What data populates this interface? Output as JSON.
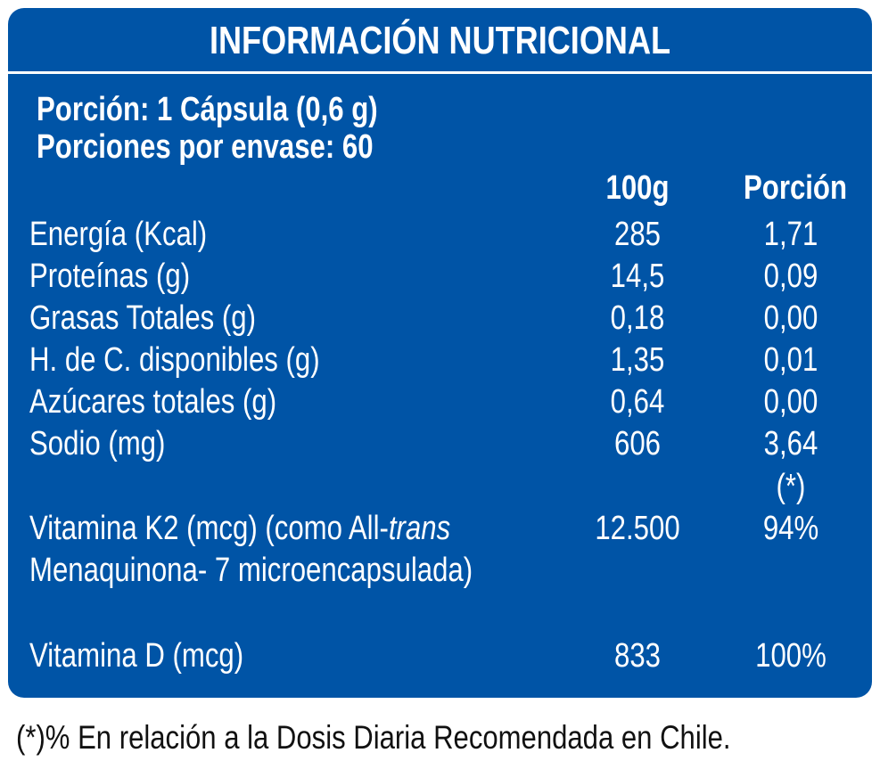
{
  "panel": {
    "title": "INFORMACIÓN NUTRICIONAL",
    "serving_size": "Porción: 1 Cápsula (0,6 g)",
    "servings_per_container": "Porciones por envase: 60",
    "col_100g": "100g",
    "col_portion": "Porción",
    "rows": [
      {
        "label": "Energía (Kcal)",
        "per100": "285",
        "portion": "1,71"
      },
      {
        "label": "Proteínas (g)",
        "per100": "14,5",
        "portion": "0,09"
      },
      {
        "label": "Grasas Totales (g)",
        "per100": "0,18",
        "portion": "0,00"
      },
      {
        "label": "H. de C. disponibles (g)",
        "per100": "1,35",
        "portion": "0,01"
      },
      {
        "label": "Azúcares totales (g)",
        "per100": "0,64",
        "portion": "0,00"
      },
      {
        "label": "Sodio (mg)",
        "per100": "606",
        "portion": "3,64"
      }
    ],
    "asterisk_note": "(*)",
    "vitamin_k2": {
      "label_part1": "Vitamina K2 (mcg) (como All-",
      "label_italic": "trans",
      "label_line2": "Menaquinona- 7 microencapsulada)",
      "per100": "12.500",
      "portion": "94%"
    },
    "vitamin_d": {
      "label": "Vitamina D (mcg)",
      "per100": "833",
      "portion": "100%"
    }
  },
  "footnote": "(*)% En relación a la Dosis Diaria Recomendada en Chile.",
  "colors": {
    "panel_bg": "#0054a6",
    "text": "#ffffff",
    "footnote_text": "#111111"
  }
}
